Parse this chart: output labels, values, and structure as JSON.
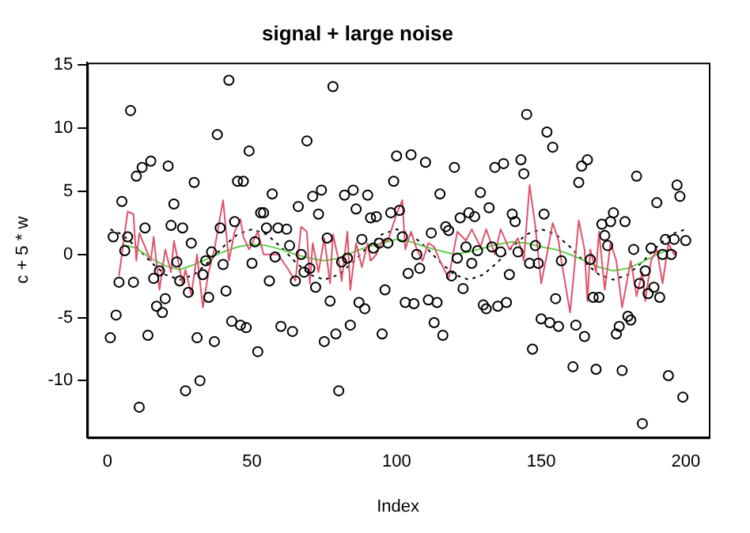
{
  "chart_data": {
    "type": "scatter",
    "title": "signal + large noise",
    "xlabel": "Index",
    "ylabel": "c + 5 * w",
    "x": [
      1,
      2,
      3,
      4,
      5,
      6,
      7,
      8,
      9,
      10,
      11,
      12,
      13,
      14,
      15,
      16,
      17,
      18,
      19,
      20,
      21,
      22,
      23,
      24,
      25,
      26,
      27,
      28,
      29,
      30,
      31,
      32,
      33,
      34,
      35,
      36,
      37,
      38,
      39,
      40,
      41,
      42,
      43,
      44,
      45,
      46,
      47,
      48,
      49,
      50,
      51,
      52,
      53,
      54,
      55,
      56,
      57,
      58,
      59,
      60,
      61,
      62,
      63,
      64,
      65,
      66,
      67,
      68,
      69,
      70,
      71,
      72,
      73,
      74,
      75,
      76,
      77,
      78,
      79,
      80,
      81,
      82,
      83,
      84,
      85,
      86,
      87,
      88,
      89,
      90,
      91,
      92,
      93,
      94,
      95,
      96,
      97,
      98,
      99,
      100,
      101,
      102,
      103,
      104,
      105,
      106,
      107,
      108,
      109,
      110,
      111,
      112,
      113,
      114,
      115,
      116,
      117,
      118,
      119,
      120,
      121,
      122,
      123,
      124,
      125,
      126,
      127,
      128,
      129,
      130,
      131,
      132,
      133,
      134,
      135,
      136,
      137,
      138,
      139,
      140,
      141,
      142,
      143,
      144,
      145,
      146,
      147,
      148,
      149,
      150,
      151,
      152,
      153,
      154,
      155,
      156,
      157,
      158,
      159,
      160,
      161,
      162,
      163,
      164,
      165,
      166,
      167,
      168,
      169,
      170,
      171,
      172,
      173,
      174,
      175,
      176,
      177,
      178,
      179,
      180,
      181,
      182,
      183,
      184,
      185,
      186,
      187,
      188,
      189,
      190,
      191,
      192,
      193,
      194,
      195,
      196,
      197,
      198,
      199,
      200
    ],
    "series": [
      {
        "type": "scatter",
        "color": "#000000",
        "marker": "circle",
        "values": [
          -6.6,
          1.4,
          -4.8,
          -2.2,
          4.2,
          0.3,
          1.4,
          11.4,
          -2.2,
          6.2,
          -12.1,
          6.9,
          2.1,
          -6.4,
          7.4,
          -1.9,
          -4.1,
          -1.3,
          -4.6,
          -3.5,
          7.0,
          2.3,
          4.0,
          -0.6,
          -2.1,
          2.1,
          -10.8,
          -3.0,
          0.9,
          5.7,
          -6.6,
          -10.0,
          -1.6,
          -0.5,
          -3.4,
          0.2,
          -6.9,
          9.5,
          2.1,
          -0.8,
          -2.9,
          13.8,
          -5.3,
          2.6,
          5.8,
          -5.6,
          5.8,
          -5.8,
          8.2,
          -0.7,
          1.0,
          -7.7,
          3.3,
          3.3,
          2.1,
          -2.1,
          4.8,
          -0.2,
          2.1,
          -5.7,
          null,
          2.0,
          0.7,
          -6.1,
          -2.1,
          3.8,
          0.0,
          -1.4,
          9.0,
          -1.1,
          4.6,
          -2.6,
          3.2,
          5.1,
          -6.9,
          1.3,
          -3.7,
          13.3,
          -6.3,
          -10.8,
          -0.6,
          4.7,
          -0.3,
          -5.6,
          5.1,
          3.6,
          -3.8,
          1.2,
          -4.3,
          4.7,
          2.9,
          0.5,
          3.0,
          0.9,
          -6.3,
          -2.8,
          0.9,
          3.3,
          5.8,
          7.8,
          3.5,
          1.4,
          -3.8,
          -1.5,
          7.9,
          -3.9,
          0.0,
          -1.1,
          null,
          7.3,
          -3.6,
          1.7,
          -5.4,
          -3.8,
          4.8,
          -6.4,
          2.2,
          1.9,
          -1.7,
          6.9,
          -0.3,
          2.9,
          -2.7,
          0.6,
          3.3,
          -0.7,
          3.0,
          0.3,
          4.9,
          -4.0,
          -4.3,
          3.7,
          0.6,
          6.9,
          -4.1,
          0.2,
          7.2,
          -3.8,
          -1.6,
          3.2,
          2.6,
          0.2,
          7.5,
          6.4,
          11.1,
          -0.7,
          -7.5,
          0.7,
          -0.7,
          -5.1,
          3.2,
          9.7,
          -5.4,
          8.5,
          -3.5,
          -5.7,
          -0.5,
          null,
          null,
          null,
          -8.9,
          -5.6,
          5.7,
          7.0,
          -6.5,
          7.5,
          -0.4,
          -3.4,
          -9.1,
          -3.4,
          2.4,
          1.5,
          0.7,
          2.6,
          3.3,
          -6.3,
          -5.7,
          -9.2,
          2.6,
          -4.9,
          -5.2,
          0.4,
          6.2,
          -2.3,
          -13.4,
          -1.3,
          -3.1,
          0.5,
          -2.6,
          4.1,
          -3.4,
          0.0,
          1.2,
          -9.6,
          0.0,
          1.2,
          5.5,
          4.6,
          -11.3,
          1.1
        ]
      },
      {
        "type": "line",
        "color": "#df536b",
        "marker": "none",
        "x": [
          4,
          7,
          9,
          10,
          11,
          13,
          15,
          16,
          18,
          20,
          22,
          23,
          26,
          27,
          29,
          31,
          33,
          35,
          37,
          40,
          42,
          44,
          46,
          47,
          49,
          52,
          54,
          59,
          62,
          65,
          67,
          69,
          70,
          71,
          73,
          75,
          77,
          78,
          80,
          81,
          83,
          84,
          86,
          88,
          90,
          91,
          93,
          95,
          97,
          100,
          102,
          103,
          105,
          107,
          109,
          111,
          113,
          115,
          118,
          121,
          124,
          126,
          129,
          131,
          134,
          136,
          139,
          142,
          144,
          146,
          148,
          150,
          152,
          154,
          156,
          157,
          160,
          161,
          163,
          165,
          166,
          167,
          169,
          170,
          172,
          174,
          176,
          178,
          181,
          183,
          185,
          186,
          188,
          190,
          192,
          194,
          196,
          197
        ],
        "values": [
          -1.7,
          3.4,
          3.2,
          -0.5,
          1.7,
          0.6,
          -0.5,
          1.4,
          -2.8,
          0.4,
          -1.4,
          1.1,
          -2.3,
          -1.2,
          -3.2,
          0.0,
          -4.2,
          -1.4,
          0.4,
          4.3,
          -0.5,
          1.8,
          2.8,
          1.4,
          0.4,
          1.8,
          0.0,
          0.0,
          -1.0,
          -2.1,
          2.2,
          1.8,
          -2.3,
          0.9,
          -1.4,
          1.3,
          -2.3,
          1.6,
          -0.5,
          -2.1,
          1.8,
          -2.8,
          0.9,
          -1.0,
          0.9,
          -0.5,
          0.0,
          1.1,
          1.1,
          3.2,
          4.3,
          0.4,
          1.8,
          0.4,
          -0.5,
          0.9,
          0.6,
          -0.5,
          -1.9,
          1.8,
          1.1,
          2.0,
          0.6,
          2.0,
          0.0,
          2.0,
          0.4,
          1.3,
          -0.5,
          5.5,
          2.2,
          -2.3,
          0.0,
          2.5,
          1.1,
          -0.5,
          -4.6,
          -2.3,
          2.7,
          0.4,
          -3.7,
          0.4,
          -1.4,
          1.8,
          -2.8,
          0.9,
          -0.5,
          -4.2,
          -0.5,
          -3.3,
          -1.4,
          -3.7,
          -0.5,
          0.4,
          -2.3,
          0.9,
          0.0,
          0.2
        ]
      },
      {
        "type": "line",
        "color": "#61d04f",
        "marker": "none",
        "x": [
          5,
          10,
          15,
          20,
          25,
          30,
          35,
          40,
          45,
          50,
          55,
          60,
          65,
          70,
          75,
          80,
          85,
          90,
          95,
          100,
          105,
          110,
          115,
          120,
          125,
          130,
          135,
          140,
          145,
          150,
          155,
          160,
          165,
          170,
          175,
          180,
          185,
          190,
          195
        ],
        "values": [
          0.8,
          0.5,
          -0.3,
          -0.9,
          -1.2,
          -0.8,
          -0.3,
          0.2,
          0.6,
          0.8,
          0.7,
          0.4,
          0.0,
          -0.3,
          -0.5,
          -0.3,
          0.2,
          0.6,
          0.9,
          1.2,
          1.0,
          0.6,
          0.3,
          0.0,
          0.2,
          0.5,
          0.8,
          1.0,
          0.9,
          0.6,
          0.4,
          0.0,
          -0.5,
          -1.0,
          -1.3,
          -1.1,
          -0.6,
          0.0,
          0.5
        ]
      },
      {
        "type": "line",
        "color": "#000000",
        "marker": "none",
        "line_style": "dotted",
        "x": [
          1,
          5,
          10,
          15,
          20,
          25,
          30,
          35,
          40,
          45,
          50,
          55,
          60,
          65,
          70,
          75,
          80,
          85,
          90,
          95,
          100,
          105,
          110,
          115,
          120,
          125,
          130,
          135,
          140,
          145,
          150,
          155,
          160,
          165,
          170,
          175,
          180,
          185,
          190,
          195,
          200
        ],
        "values": [
          2.0,
          1.6,
          0.6,
          -0.6,
          -1.6,
          -2.0,
          -1.6,
          -0.6,
          0.6,
          1.6,
          2.0,
          1.6,
          0.6,
          -0.6,
          -1.6,
          -2.0,
          -1.6,
          -0.6,
          0.6,
          1.6,
          2.0,
          1.6,
          0.6,
          -0.6,
          -1.6,
          -2.0,
          -1.6,
          -0.6,
          0.6,
          1.6,
          2.0,
          1.6,
          0.6,
          -0.6,
          -1.6,
          -2.0,
          -1.6,
          -0.6,
          0.6,
          1.6,
          2.0
        ]
      }
    ],
    "xlim": [
      -7,
      208
    ],
    "xticks": [
      0,
      50,
      100,
      150,
      200
    ],
    "ylim": [
      -14.5,
      15.2
    ],
    "yticks": [
      -10,
      -5,
      0,
      5,
      10,
      15
    ]
  }
}
